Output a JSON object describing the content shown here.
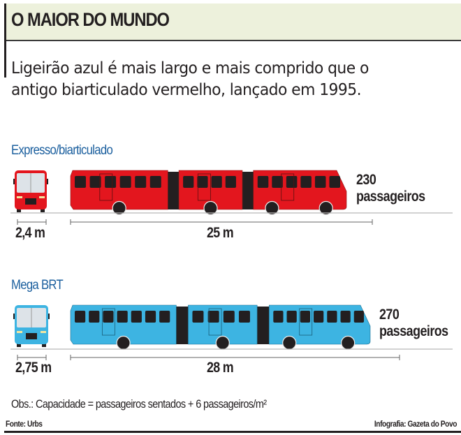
{
  "header": {
    "title": "O MAIOR DO MUNDO",
    "subtitle_line1": "Ligeirão azul é mais largo e mais comprido que o",
    "subtitle_line2": "antigo biarticulado vermelho, lançado em 1995."
  },
  "buses": [
    {
      "name": "Expresso/biarticulado",
      "capacity": "230",
      "capacity_unit": "passageiros",
      "width_label": "2,4 m",
      "length_label": "25 m",
      "width_m": 2.4,
      "length_m": 25,
      "color": "#e3161e"
    },
    {
      "name": "Mega BRT",
      "capacity": "270",
      "capacity_unit": "passageiros",
      "width_label": "2,75 m",
      "length_label": "28 m",
      "width_m": 2.75,
      "length_m": 28,
      "color": "#3db4e2"
    }
  ],
  "footer": {
    "obs": "Obs.: Capacidade = passageiros sentados + 6 passageiros/m²",
    "source": "Fonte: Urbs",
    "credit": "Infografia: Gazeta do Povo"
  },
  "colors": {
    "header_bg": "#edf1dc",
    "section_title": "#1b5f9e",
    "joint": "#231f20"
  }
}
